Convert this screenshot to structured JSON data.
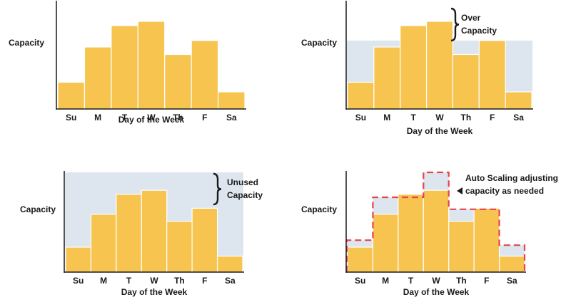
{
  "colors": {
    "bar": "#f6c44f",
    "bar_edge": "#d9a21f",
    "capacity_band": "#dde6ef",
    "axis": "#1a1a1a",
    "dashed_outline": "#e8434b"
  },
  "chart_data": [
    {
      "type": "bar",
      "categories": [
        "Su",
        "M",
        "T",
        "W",
        "Th",
        "F",
        "Sa"
      ],
      "values": [
        25,
        58,
        78,
        82,
        51,
        64,
        16
      ],
      "ylabel": "Capacity",
      "xlabel": "Day of the Week",
      "ylim": [
        0,
        100
      ]
    },
    {
      "type": "bar",
      "categories": [
        "Su",
        "M",
        "T",
        "W",
        "Th",
        "F",
        "Sa"
      ],
      "values": [
        25,
        58,
        78,
        82,
        51,
        64,
        16
      ],
      "capacity_level": 64,
      "annotation": "Over Capacity",
      "ylabel": "Capacity",
      "xlabel": "Day of the Week",
      "ylim": [
        0,
        100
      ]
    },
    {
      "type": "bar",
      "categories": [
        "Su",
        "M",
        "T",
        "W",
        "Th",
        "F",
        "Sa"
      ],
      "values": [
        25,
        58,
        78,
        82,
        51,
        64,
        16
      ],
      "capacity_level": 100,
      "annotation": "Unused Capacity",
      "ylabel": "Capacity",
      "xlabel": "Day of the Week",
      "ylim": [
        0,
        100
      ]
    },
    {
      "type": "bar",
      "categories": [
        "Su",
        "M",
        "T",
        "W",
        "Th",
        "F",
        "Sa"
      ],
      "values": [
        25,
        58,
        78,
        82,
        51,
        64,
        16
      ],
      "capacity_steps": [
        32,
        75,
        75,
        100,
        63,
        63,
        27
      ],
      "annotation": "Auto Scaling adjusting capacity as needed",
      "ylabel": "Capacity",
      "xlabel": "Day of the Week",
      "ylim": [
        0,
        100
      ]
    }
  ]
}
